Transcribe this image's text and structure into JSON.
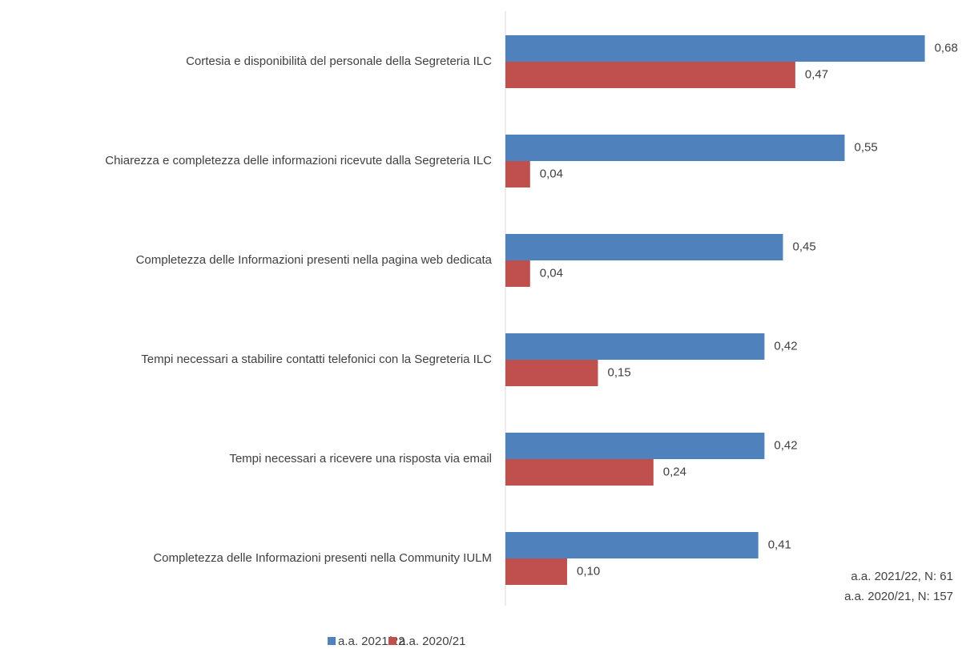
{
  "chart_data": {
    "type": "barh",
    "categories": [
      "Cortesia e disponibilità del personale della Segreteria ILC",
      "Chiarezza e completezza delle informazioni ricevute dalla Segreteria ILC",
      "Completezza delle Informazioni presenti nella pagina web dedicata",
      "Tempi necessari a stabilire contatti telefonici con la Segreteria ILC",
      "Tempi necessari a ricevere una risposta via email",
      "Completezza delle Informazioni presenti nella Community IULM"
    ],
    "series": [
      {
        "name": "a.a. 2021/22",
        "color": "#4f81bd",
        "values": [
          0.68,
          0.55,
          0.45,
          0.42,
          0.42,
          0.41
        ],
        "value_labels": [
          "0,68",
          "0,55",
          "0,45",
          "0,42",
          "0,42",
          "0,41"
        ]
      },
      {
        "name": "a.a. 2020/21",
        "color": "#c0504d",
        "values": [
          0.47,
          0.04,
          0.04,
          0.15,
          0.24,
          0.1
        ],
        "value_labels": [
          "0,47",
          "0,04",
          "0,04",
          "0,15",
          "0,24",
          "0,10"
        ]
      }
    ],
    "xlim": [
      0,
      0.7
    ],
    "annotations": [
      "a.a. 2021/22, N: 61",
      "a.a. 2020/21, N: 157"
    ],
    "legend": "bottom"
  }
}
